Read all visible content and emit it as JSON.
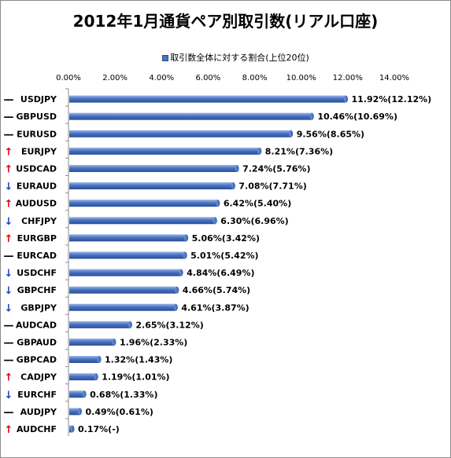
{
  "chart_data": {
    "type": "bar",
    "orientation": "horizontal",
    "title": "2012年1月通貨ペア別取引数(リアル口座)",
    "legend": {
      "label": "取引数全体に対する割合(上位20位)",
      "position": "top",
      "color": "#4a72c4"
    },
    "xlim": [
      0,
      14
    ],
    "x_ticks": [
      "0.00%",
      "2.00%",
      "4.00%",
      "6.00%",
      "8.00%",
      "10.00%",
      "12.00%",
      "14.00%"
    ],
    "grid": false,
    "categories": [
      "USDJPY",
      "GBPUSD",
      "EURUSD",
      "EURJPY",
      "USDCAD",
      "EURAUD",
      "AUDUSD",
      "CHFJPY",
      "EURGBP",
      "EURCAD",
      "USDCHF",
      "GBPCHF",
      "GBPJPY",
      "AUDCAD",
      "GBPAUD",
      "GBPCAD",
      "CADJPY",
      "EURCHF",
      "AUDJPY",
      "AUDCHF"
    ],
    "trend": [
      "—",
      "—",
      "—",
      "↑",
      "↑",
      "↓",
      "↑",
      "↓",
      "↑",
      "—",
      "↓",
      "↓",
      "↓",
      "—",
      "—",
      "—",
      "↑",
      "↓",
      "—",
      "↑"
    ],
    "trend_colors": {
      "—": "#000000",
      "↑": "#e00000",
      "↓": "#1f3fbf"
    },
    "values": [
      11.92,
      10.46,
      9.56,
      8.21,
      7.24,
      7.08,
      6.42,
      6.3,
      5.06,
      5.01,
      4.84,
      4.66,
      4.61,
      2.65,
      1.96,
      1.32,
      1.19,
      0.68,
      0.49,
      0.17
    ],
    "data_labels": [
      "11.92%(12.12%)",
      "10.46%(10.69%)",
      "9.56%(8.65%)",
      "8.21%(7.36%)",
      "7.24%(5.76%)",
      "7.08%(7.71%)",
      "6.42%(5.40%)",
      "6.30%(6.96%)",
      "5.06%(3.42%)",
      "5.01%(5.42%)",
      "4.84%(6.49%)",
      "4.66%(5.74%)",
      "4.61%(3.87%)",
      "2.65%(3.12%)",
      "1.96%(2.33%)",
      "1.32%(1.43%)",
      "1.19%(1.01%)",
      "0.68%(1.33%)",
      "0.49%(0.61%)",
      "0.17%(-)"
    ]
  }
}
